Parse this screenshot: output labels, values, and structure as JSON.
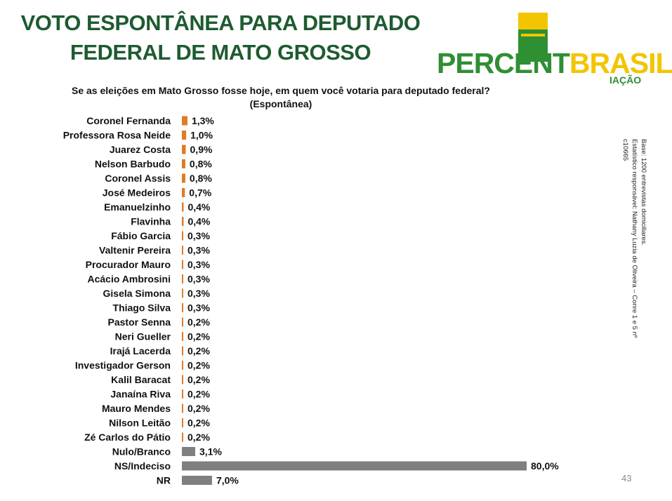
{
  "slide": {
    "title_line1": "VOTO ESPONTÂNEA PARA DEPUTADO",
    "title_line2": "FEDERAL DE MATO GROSSO",
    "question_line1": "Se as eleições em Mato Grosso fosse hoje, em quem você votaria para deputado federal?",
    "question_line2": "(Espontânea)",
    "side_note_line1": "Base: 1200 entrevistas domiciliares.",
    "side_note_line2": "Estatístico responsável: Nathany Luzia de Oliveira – Conre 1 e 5 nº c10665",
    "page_number": "43"
  },
  "logo": {
    "word_percent": "PERCENT",
    "word_brasil": "BRASIL",
    "registered": "®",
    "subtitle": "IAÇÃO",
    "flag_yellow": "#f2c500",
    "flag_green": "#2f8f33"
  },
  "chart_data": {
    "type": "bar",
    "orientation": "horizontal",
    "categories": [
      "Coronel Fernanda",
      "Professora Rosa Neide",
      "Juarez Costa",
      "Nelson Barbudo",
      "Coronel Assis",
      "José Medeiros",
      "Emanuelzinho",
      "Flavinha",
      "Fábio Garcia",
      "Valtenir Pereira",
      "Procurador Mauro",
      "Acácio Ambrosini",
      "Gisela Simona",
      "Thiago Silva",
      "Pastor Senna",
      "Neri Gueller",
      "Irajá Lacerda",
      "Investigador Gerson",
      "Kalil Baracat",
      "Janaína Riva",
      "Mauro Mendes",
      "Nilson Leitão",
      "Zé Carlos do Pátio",
      "Nulo/Branco",
      "NS/Indeciso",
      "NR"
    ],
    "values": [
      1.3,
      1.0,
      0.9,
      0.8,
      0.8,
      0.7,
      0.4,
      0.4,
      0.3,
      0.3,
      0.3,
      0.3,
      0.3,
      0.3,
      0.2,
      0.2,
      0.2,
      0.2,
      0.2,
      0.2,
      0.2,
      0.2,
      0.2,
      3.1,
      80.0,
      7.0
    ],
    "value_labels": [
      "1,3%",
      "1,0%",
      "0,9%",
      "0,8%",
      "0,8%",
      "0,7%",
      "0,4%",
      "0,4%",
      "0,3%",
      "0,3%",
      "0,3%",
      "0,3%",
      "0,3%",
      "0,3%",
      "0,2%",
      "0,2%",
      "0,2%",
      "0,2%",
      "0,2%",
      "0,2%",
      "0,2%",
      "0,2%",
      "0,2%",
      "3,1%",
      "80,0%",
      "7,0%"
    ],
    "bar_groups": [
      "candidate",
      "candidate",
      "candidate",
      "candidate",
      "candidate",
      "candidate",
      "candidate",
      "candidate",
      "candidate",
      "candidate",
      "candidate",
      "candidate",
      "candidate",
      "candidate",
      "candidate",
      "candidate",
      "candidate",
      "candidate",
      "candidate",
      "candidate",
      "candidate",
      "candidate",
      "candidate",
      "other",
      "other",
      "other"
    ],
    "colors": {
      "candidate": "#e07b24",
      "other": "#7f7f7f"
    },
    "xlim": [
      0,
      80
    ],
    "grid": false,
    "legend": "none"
  }
}
